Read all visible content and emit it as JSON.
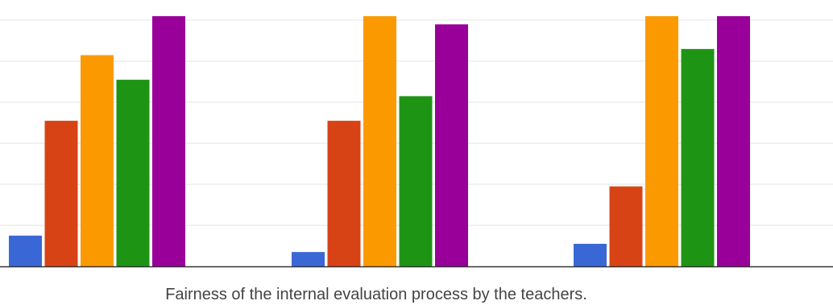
{
  "chart_data": {
    "type": "bar",
    "categories": [
      "Fairness of the internal evaluation process by the teachers.",
      "",
      ""
    ],
    "series": [
      {
        "color": "#3a67d6",
        "values": [
          7.5,
          3.5,
          5.5
        ]
      },
      {
        "color": "#d84315",
        "values": [
          35.5,
          35.5,
          19.5
        ]
      },
      {
        "color": "#fb9a00",
        "values": [
          51.5,
          61,
          61
        ]
      },
      {
        "color": "#1e9415",
        "values": [
          45.5,
          41.5,
          53
        ]
      },
      {
        "color": "#990099",
        "values": [
          61,
          59,
          61
        ]
      }
    ],
    "ylim": [
      0,
      62
    ],
    "grid": true,
    "legend": "none"
  }
}
